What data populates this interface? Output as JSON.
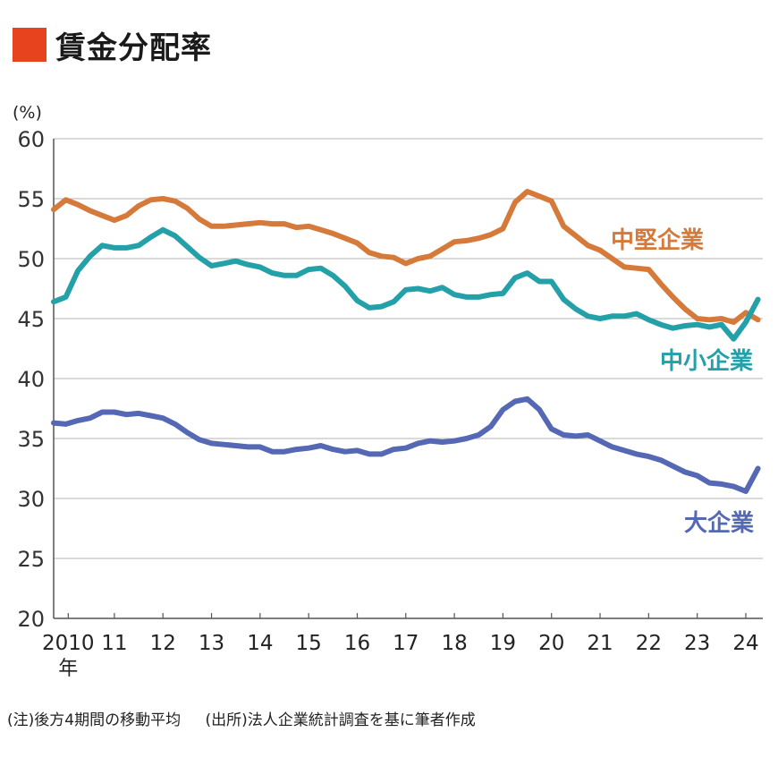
{
  "title": "賃金分配率",
  "accent_color": "#e8431f",
  "notes": {
    "note": "(注)後方4期間の移動平均",
    "source": "(出所)法人企業統計調査を基に筆者作成"
  },
  "chart_data": {
    "type": "line",
    "ylabel": "(%)",
    "ylim": [
      20,
      60
    ],
    "yticks": [
      "20",
      "25",
      "30",
      "35",
      "40",
      "45",
      "50",
      "55",
      "60"
    ],
    "xlim": [
      2010.0,
      2024.6
    ],
    "x_ticks": [
      {
        "label": "2010",
        "x": 2010.3,
        "sub": "年"
      },
      {
        "label": "11",
        "x": 2011.25
      },
      {
        "label": "12",
        "x": 2012.25
      },
      {
        "label": "13",
        "x": 2013.25
      },
      {
        "label": "14",
        "x": 2014.25
      },
      {
        "label": "15",
        "x": 2015.25
      },
      {
        "label": "16",
        "x": 2016.25
      },
      {
        "label": "17",
        "x": 2017.25
      },
      {
        "label": "18",
        "x": 2018.25
      },
      {
        "label": "19",
        "x": 2019.25
      },
      {
        "label": "20",
        "x": 2020.25
      },
      {
        "label": "21",
        "x": 2021.25
      },
      {
        "label": "22",
        "x": 2022.25
      },
      {
        "label": "23",
        "x": 2023.25
      },
      {
        "label": "24",
        "x": 2024.25
      }
    ],
    "grid": true,
    "series": [
      {
        "name": "中堅企業",
        "color": "#d57a3a",
        "x": [
          2010.0,
          2010.25,
          2010.5,
          2010.75,
          2011.0,
          2011.25,
          2011.5,
          2011.75,
          2012.0,
          2012.25,
          2012.5,
          2012.75,
          2013.0,
          2013.25,
          2013.5,
          2013.75,
          2014.0,
          2014.25,
          2014.5,
          2014.75,
          2015.0,
          2015.25,
          2015.5,
          2015.75,
          2016.0,
          2016.25,
          2016.5,
          2016.75,
          2017.0,
          2017.25,
          2017.5,
          2017.75,
          2018.0,
          2018.25,
          2018.5,
          2018.75,
          2019.0,
          2019.25,
          2019.5,
          2019.75,
          2020.0,
          2020.25,
          2020.5,
          2020.75,
          2021.0,
          2021.25,
          2021.5,
          2021.75,
          2022.0,
          2022.25,
          2022.5,
          2022.75,
          2023.0,
          2023.25,
          2023.5,
          2023.75,
          2024.0,
          2024.25,
          2024.5
        ],
        "y": [
          54.1,
          54.9,
          54.5,
          54.0,
          53.6,
          53.2,
          53.6,
          54.4,
          54.9,
          55.0,
          54.8,
          54.2,
          53.3,
          52.7,
          52.7,
          52.8,
          52.9,
          53.0,
          52.9,
          52.9,
          52.6,
          52.7,
          52.4,
          52.1,
          51.7,
          51.3,
          50.5,
          50.2,
          50.1,
          49.6,
          50.0,
          50.2,
          50.8,
          51.4,
          51.5,
          51.7,
          52.0,
          52.5,
          54.7,
          55.6,
          55.2,
          54.8,
          52.7,
          51.9,
          51.1,
          50.7,
          50.0,
          49.3,
          49.2,
          49.1,
          47.9,
          46.8,
          45.8,
          45.0,
          44.9,
          45.0,
          44.7,
          45.5,
          44.9
        ]
      },
      {
        "name": "中小企業",
        "color": "#23a0a8",
        "x": [
          2010.0,
          2010.25,
          2010.5,
          2010.75,
          2011.0,
          2011.25,
          2011.5,
          2011.75,
          2012.0,
          2012.25,
          2012.5,
          2012.75,
          2013.0,
          2013.25,
          2013.5,
          2013.75,
          2014.0,
          2014.25,
          2014.5,
          2014.75,
          2015.0,
          2015.25,
          2015.5,
          2015.75,
          2016.0,
          2016.25,
          2016.5,
          2016.75,
          2017.0,
          2017.25,
          2017.5,
          2017.75,
          2018.0,
          2018.25,
          2018.5,
          2018.75,
          2019.0,
          2019.25,
          2019.5,
          2019.75,
          2020.0,
          2020.25,
          2020.5,
          2020.75,
          2021.0,
          2021.25,
          2021.5,
          2021.75,
          2022.0,
          2022.25,
          2022.5,
          2022.75,
          2023.0,
          2023.25,
          2023.5,
          2023.75,
          2024.0,
          2024.25,
          2024.5
        ],
        "y": [
          46.4,
          46.8,
          49.0,
          50.2,
          51.1,
          50.9,
          50.9,
          51.1,
          51.8,
          52.4,
          51.9,
          51.0,
          50.1,
          49.4,
          49.6,
          49.8,
          49.5,
          49.3,
          48.8,
          48.6,
          48.6,
          49.1,
          49.2,
          48.6,
          47.7,
          46.5,
          45.9,
          46.0,
          46.4,
          47.4,
          47.5,
          47.3,
          47.6,
          47.0,
          46.8,
          46.8,
          47.0,
          47.1,
          48.4,
          48.8,
          48.1,
          48.1,
          46.6,
          45.8,
          45.2,
          45.0,
          45.2,
          45.2,
          45.4,
          44.9,
          44.5,
          44.2,
          44.4,
          44.5,
          44.3,
          44.5,
          43.3,
          44.7,
          46.6
        ]
      },
      {
        "name": "大企業",
        "color": "#5468b4",
        "x": [
          2010.0,
          2010.25,
          2010.5,
          2010.75,
          2011.0,
          2011.25,
          2011.5,
          2011.75,
          2012.0,
          2012.25,
          2012.5,
          2012.75,
          2013.0,
          2013.25,
          2013.5,
          2013.75,
          2014.0,
          2014.25,
          2014.5,
          2014.75,
          2015.0,
          2015.25,
          2015.5,
          2015.75,
          2016.0,
          2016.25,
          2016.5,
          2016.75,
          2017.0,
          2017.25,
          2017.5,
          2017.75,
          2018.0,
          2018.25,
          2018.5,
          2018.75,
          2019.0,
          2019.25,
          2019.5,
          2019.75,
          2020.0,
          2020.25,
          2020.5,
          2020.75,
          2021.0,
          2021.25,
          2021.5,
          2021.75,
          2022.0,
          2022.25,
          2022.5,
          2022.75,
          2023.0,
          2023.25,
          2023.5,
          2023.75,
          2024.0,
          2024.25,
          2024.5
        ],
        "y": [
          36.3,
          36.2,
          36.5,
          36.7,
          37.2,
          37.2,
          37.0,
          37.1,
          36.9,
          36.7,
          36.2,
          35.5,
          34.9,
          34.6,
          34.5,
          34.4,
          34.3,
          34.3,
          33.9,
          33.9,
          34.1,
          34.2,
          34.4,
          34.1,
          33.9,
          34.0,
          33.7,
          33.7,
          34.1,
          34.2,
          34.6,
          34.8,
          34.7,
          34.8,
          35.0,
          35.3,
          36.0,
          37.4,
          38.1,
          38.3,
          37.4,
          35.8,
          35.3,
          35.2,
          35.3,
          34.8,
          34.3,
          34.0,
          33.7,
          33.5,
          33.2,
          32.7,
          32.2,
          31.9,
          31.3,
          31.2,
          31.0,
          30.6,
          32.5
        ]
      }
    ],
    "series_labels": [
      "中堅企業",
      "中小企業",
      "大企業"
    ]
  }
}
